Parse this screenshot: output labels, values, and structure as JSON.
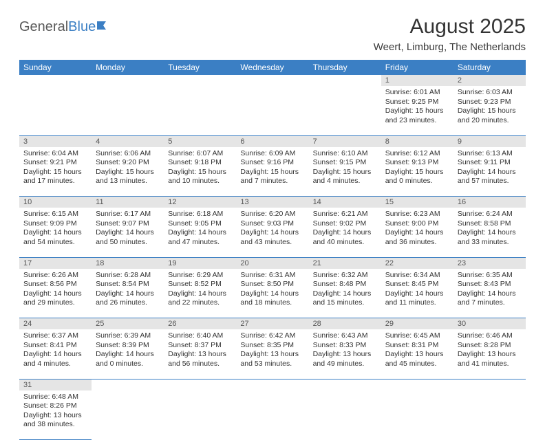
{
  "logo": {
    "text1": "General",
    "text2": "Blue"
  },
  "title": "August 2025",
  "location": "Weert, Limburg, The Netherlands",
  "colors": {
    "header_bg": "#3b7fc4",
    "header_text": "#ffffff",
    "daynum_bg": "#e5e5e5",
    "border": "#3b7fc4"
  },
  "day_headers": [
    "Sunday",
    "Monday",
    "Tuesday",
    "Wednesday",
    "Thursday",
    "Friday",
    "Saturday"
  ],
  "weeks": [
    [
      null,
      null,
      null,
      null,
      null,
      {
        "n": "1",
        "sr": "6:01 AM",
        "ss": "9:25 PM",
        "dl": "15 hours and 23 minutes."
      },
      {
        "n": "2",
        "sr": "6:03 AM",
        "ss": "9:23 PM",
        "dl": "15 hours and 20 minutes."
      }
    ],
    [
      {
        "n": "3",
        "sr": "6:04 AM",
        "ss": "9:21 PM",
        "dl": "15 hours and 17 minutes."
      },
      {
        "n": "4",
        "sr": "6:06 AM",
        "ss": "9:20 PM",
        "dl": "15 hours and 13 minutes."
      },
      {
        "n": "5",
        "sr": "6:07 AM",
        "ss": "9:18 PM",
        "dl": "15 hours and 10 minutes."
      },
      {
        "n": "6",
        "sr": "6:09 AM",
        "ss": "9:16 PM",
        "dl": "15 hours and 7 minutes."
      },
      {
        "n": "7",
        "sr": "6:10 AM",
        "ss": "9:15 PM",
        "dl": "15 hours and 4 minutes."
      },
      {
        "n": "8",
        "sr": "6:12 AM",
        "ss": "9:13 PM",
        "dl": "15 hours and 0 minutes."
      },
      {
        "n": "9",
        "sr": "6:13 AM",
        "ss": "9:11 PM",
        "dl": "14 hours and 57 minutes."
      }
    ],
    [
      {
        "n": "10",
        "sr": "6:15 AM",
        "ss": "9:09 PM",
        "dl": "14 hours and 54 minutes."
      },
      {
        "n": "11",
        "sr": "6:17 AM",
        "ss": "9:07 PM",
        "dl": "14 hours and 50 minutes."
      },
      {
        "n": "12",
        "sr": "6:18 AM",
        "ss": "9:05 PM",
        "dl": "14 hours and 47 minutes."
      },
      {
        "n": "13",
        "sr": "6:20 AM",
        "ss": "9:03 PM",
        "dl": "14 hours and 43 minutes."
      },
      {
        "n": "14",
        "sr": "6:21 AM",
        "ss": "9:02 PM",
        "dl": "14 hours and 40 minutes."
      },
      {
        "n": "15",
        "sr": "6:23 AM",
        "ss": "9:00 PM",
        "dl": "14 hours and 36 minutes."
      },
      {
        "n": "16",
        "sr": "6:24 AM",
        "ss": "8:58 PM",
        "dl": "14 hours and 33 minutes."
      }
    ],
    [
      {
        "n": "17",
        "sr": "6:26 AM",
        "ss": "8:56 PM",
        "dl": "14 hours and 29 minutes."
      },
      {
        "n": "18",
        "sr": "6:28 AM",
        "ss": "8:54 PM",
        "dl": "14 hours and 26 minutes."
      },
      {
        "n": "19",
        "sr": "6:29 AM",
        "ss": "8:52 PM",
        "dl": "14 hours and 22 minutes."
      },
      {
        "n": "20",
        "sr": "6:31 AM",
        "ss": "8:50 PM",
        "dl": "14 hours and 18 minutes."
      },
      {
        "n": "21",
        "sr": "6:32 AM",
        "ss": "8:48 PM",
        "dl": "14 hours and 15 minutes."
      },
      {
        "n": "22",
        "sr": "6:34 AM",
        "ss": "8:45 PM",
        "dl": "14 hours and 11 minutes."
      },
      {
        "n": "23",
        "sr": "6:35 AM",
        "ss": "8:43 PM",
        "dl": "14 hours and 7 minutes."
      }
    ],
    [
      {
        "n": "24",
        "sr": "6:37 AM",
        "ss": "8:41 PM",
        "dl": "14 hours and 4 minutes."
      },
      {
        "n": "25",
        "sr": "6:39 AM",
        "ss": "8:39 PM",
        "dl": "14 hours and 0 minutes."
      },
      {
        "n": "26",
        "sr": "6:40 AM",
        "ss": "8:37 PM",
        "dl": "13 hours and 56 minutes."
      },
      {
        "n": "27",
        "sr": "6:42 AM",
        "ss": "8:35 PM",
        "dl": "13 hours and 53 minutes."
      },
      {
        "n": "28",
        "sr": "6:43 AM",
        "ss": "8:33 PM",
        "dl": "13 hours and 49 minutes."
      },
      {
        "n": "29",
        "sr": "6:45 AM",
        "ss": "8:31 PM",
        "dl": "13 hours and 45 minutes."
      },
      {
        "n": "30",
        "sr": "6:46 AM",
        "ss": "8:28 PM",
        "dl": "13 hours and 41 minutes."
      }
    ],
    [
      {
        "n": "31",
        "sr": "6:48 AM",
        "ss": "8:26 PM",
        "dl": "13 hours and 38 minutes."
      },
      null,
      null,
      null,
      null,
      null,
      null
    ]
  ],
  "labels": {
    "sunrise": "Sunrise:",
    "sunset": "Sunset:",
    "daylight": "Daylight:"
  }
}
